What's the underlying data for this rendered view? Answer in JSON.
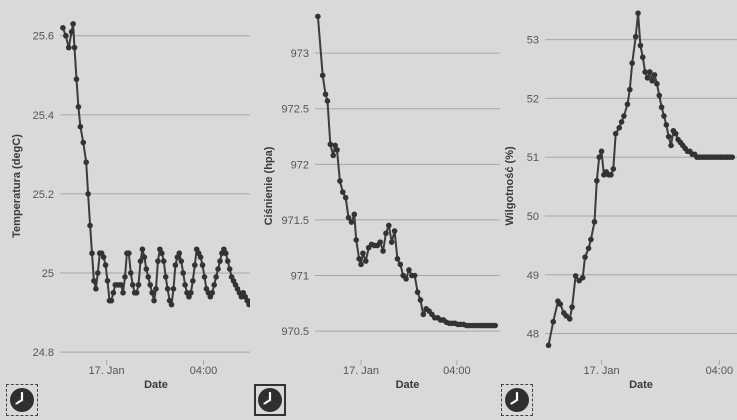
{
  "chart_data": [
    {
      "type": "line",
      "title": "",
      "xlabel": "Date",
      "ylabel": "Temperatura (degC)",
      "ylim": [
        24.78,
        25.66
      ],
      "yticks": [
        24.8,
        25,
        25.2,
        25.4,
        25.6
      ],
      "ytick_labels": [
        "24.8",
        "25",
        "25.2",
        "25.4",
        "25.6"
      ],
      "xticks": [
        "17. Jan",
        "04:00"
      ],
      "xtick_positions": [
        4.5,
        14.5
      ],
      "xlim": [
        -0.3,
        19.5
      ],
      "series": [
        {
          "x": [
            0,
            0.3,
            0.6,
            0.9,
            1.05,
            1.2,
            1.4,
            1.6,
            1.8,
            2.1,
            2.4,
            2.6,
            2.8,
            3.0,
            3.2,
            3.4,
            3.6,
            3.8,
            4.0,
            4.2,
            4.4,
            4.6,
            4.8,
            5.0,
            5.2,
            5.4,
            5.6,
            5.8,
            6.0,
            6.2,
            6.4,
            6.6,
            6.8,
            7.0,
            7.2,
            7.4,
            7.6,
            7.8,
            8.0,
            8.2,
            8.4,
            8.6,
            8.8,
            9.0,
            9.2,
            9.4,
            9.6,
            9.8,
            10.0,
            10.2,
            10.4,
            10.6,
            10.8,
            11.0,
            11.2,
            11.4,
            11.6,
            11.8,
            12.0,
            12.2,
            12.4,
            12.6,
            12.8,
            13.0,
            13.2,
            13.4,
            13.6,
            13.8,
            14.0,
            14.2,
            14.4,
            14.6,
            14.8,
            15.0,
            15.2,
            15.4,
            15.6,
            15.8,
            16.0,
            16.2,
            16.4,
            16.6,
            16.8,
            17.0,
            17.2,
            17.4,
            17.6,
            17.8,
            18.0,
            18.2,
            18.4,
            18.6,
            18.8,
            19.0,
            19.2,
            19.4
          ],
          "values": [
            25.62,
            25.6,
            25.57,
            25.61,
            25.63,
            25.57,
            25.49,
            25.42,
            25.37,
            25.33,
            25.28,
            25.2,
            25.12,
            25.05,
            24.98,
            24.96,
            25.0,
            25.05,
            25.05,
            25.04,
            25.02,
            24.98,
            24.93,
            24.93,
            24.95,
            24.97,
            24.97,
            24.97,
            24.97,
            24.95,
            24.99,
            25.05,
            25.05,
            25.0,
            24.97,
            24.95,
            24.95,
            24.97,
            25.03,
            25.06,
            25.04,
            25.01,
            24.99,
            24.97,
            24.95,
            24.93,
            24.96,
            25.03,
            25.06,
            25.05,
            25.03,
            24.99,
            24.96,
            24.93,
            24.92,
            24.96,
            25.02,
            25.04,
            25.05,
            25.03,
            25.0,
            24.97,
            24.95,
            24.94,
            24.95,
            24.98,
            25.02,
            25.06,
            25.05,
            25.04,
            25.02,
            24.99,
            24.96,
            24.95,
            24.94,
            24.95,
            24.97,
            24.99,
            25.01,
            25.03,
            25.05,
            25.06,
            25.05,
            25.03,
            25.01,
            24.99,
            24.98,
            24.97,
            24.96,
            24.95,
            24.94,
            24.95,
            24.94,
            24.93,
            24.92,
            24.93
          ]
        }
      ]
    },
    {
      "type": "line",
      "title": "",
      "xlabel": "Date",
      "ylabel": "Ciśnienie (hpa)",
      "ylim": [
        970.24,
        973.37
      ],
      "yticks": [
        970.5,
        971,
        971.5,
        972,
        972.5,
        973
      ],
      "ytick_labels": [
        "970.5",
        "971",
        "971.5",
        "972",
        "972.5",
        "973"
      ],
      "xticks": [
        "17. Jan",
        "04:00"
      ],
      "xtick_positions": [
        4.5,
        14.5
      ],
      "xlim": [
        -0.3,
        19.0
      ],
      "series": [
        {
          "x": [
            0,
            0.5,
            0.8,
            1.0,
            1.3,
            1.6,
            1.8,
            2.0,
            2.3,
            2.6,
            2.9,
            3.2,
            3.5,
            3.8,
            4.0,
            4.3,
            4.5,
            4.7,
            5.0,
            5.3,
            5.6,
            5.9,
            6.2,
            6.5,
            6.8,
            7.1,
            7.4,
            7.7,
            8.0,
            8.3,
            8.6,
            8.9,
            9.2,
            9.5,
            9.8,
            10.1,
            10.4,
            10.7,
            11.0,
            11.3,
            11.6,
            11.9,
            12.2,
            12.5,
            12.8,
            13.1,
            13.4,
            13.7,
            14.0,
            14.3,
            14.6,
            14.9,
            15.2,
            15.5,
            15.8,
            16.1,
            16.4,
            16.7,
            17.0,
            17.3,
            17.6,
            17.9,
            18.2,
            18.5
          ],
          "values": [
            973.33,
            972.8,
            972.63,
            972.57,
            972.18,
            972.08,
            972.17,
            972.13,
            971.85,
            971.75,
            971.7,
            971.52,
            971.48,
            971.55,
            971.32,
            971.15,
            971.1,
            971.2,
            971.13,
            971.25,
            971.28,
            971.27,
            971.27,
            971.3,
            971.22,
            971.38,
            971.45,
            971.3,
            971.4,
            971.15,
            971.1,
            971.0,
            970.97,
            971.05,
            971.0,
            971.0,
            970.85,
            970.78,
            970.65,
            970.7,
            970.68,
            970.65,
            970.62,
            970.62,
            970.6,
            970.6,
            970.58,
            970.57,
            970.57,
            970.57,
            970.56,
            970.56,
            970.56,
            970.55,
            970.55,
            970.55,
            970.55,
            970.55,
            970.55,
            970.55,
            970.55,
            970.55,
            970.55,
            970.55
          ]
        }
      ]
    },
    {
      "type": "line",
      "title": "",
      "xlabel": "Date",
      "ylabel": "Wilgotność (%)",
      "ylim": [
        47.55,
        53.47
      ],
      "yticks": [
        48,
        49,
        50,
        51,
        52,
        53
      ],
      "ytick_labels": [
        "48",
        "49",
        "50",
        "51",
        "52",
        "53"
      ],
      "xticks": [
        "17. Jan",
        "04:00"
      ],
      "xtick_positions": [
        4.5,
        14.5
      ],
      "xlim": [
        -0.3,
        16.0
      ],
      "series": [
        {
          "x": [
            0,
            0.4,
            0.8,
            1.0,
            1.3,
            1.5,
            1.8,
            2.0,
            2.3,
            2.6,
            2.9,
            3.1,
            3.4,
            3.6,
            3.9,
            4.1,
            4.3,
            4.5,
            4.7,
            4.9,
            5.1,
            5.3,
            5.5,
            5.7,
            6.0,
            6.2,
            6.4,
            6.7,
            6.9,
            7.1,
            7.4,
            7.6,
            7.8,
            8.0,
            8.2,
            8.4,
            8.6,
            8.8,
            9.0,
            9.2,
            9.4,
            9.6,
            9.8,
            10.0,
            10.2,
            10.4,
            10.6,
            10.8,
            11.0,
            11.2,
            11.4,
            11.6,
            11.8,
            12.0,
            12.2,
            12.4,
            12.6,
            12.8,
            13.0,
            13.2,
            13.4,
            13.6,
            13.8,
            14.0,
            14.2,
            14.4,
            14.6,
            14.8,
            15.0,
            15.2,
            15.4,
            15.6
          ],
          "values": [
            47.8,
            48.2,
            48.55,
            48.5,
            48.35,
            48.3,
            48.25,
            48.45,
            48.98,
            48.9,
            48.95,
            49.3,
            49.45,
            49.6,
            49.9,
            50.6,
            51.0,
            51.1,
            50.7,
            50.75,
            50.7,
            50.7,
            50.8,
            51.4,
            51.5,
            51.6,
            51.7,
            51.9,
            52.15,
            52.6,
            53.05,
            53.45,
            52.9,
            52.7,
            52.45,
            52.35,
            52.45,
            52.3,
            52.4,
            52.25,
            52.05,
            51.85,
            51.7,
            51.55,
            51.35,
            51.2,
            51.45,
            51.4,
            51.3,
            51.25,
            51.2,
            51.15,
            51.1,
            51.1,
            51.05,
            51.05,
            51.0,
            51.0,
            51.0,
            51.0,
            51.0,
            51.0,
            51.0,
            51.0,
            51.0,
            51.0,
            51.0,
            51.0,
            51.0,
            51.0,
            51.0,
            51.0
          ]
        }
      ]
    }
  ],
  "icons": [
    "clock-icon",
    "clock-icon",
    "clock-icon"
  ]
}
